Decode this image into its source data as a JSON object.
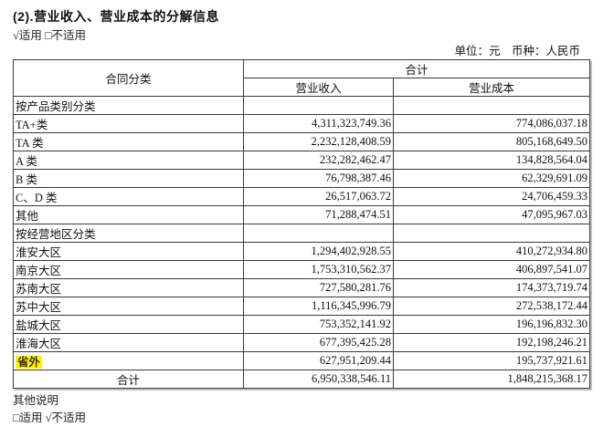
{
  "title": "(2).营业收入、营业成本的分解信息",
  "applicability_top": "√适用 □不适用",
  "unit_line": "单位：元　币种：人民币",
  "table": {
    "header": {
      "contract_category": "合同分类",
      "total_group": "合计",
      "revenue": "营业收入",
      "cost": "营业成本"
    },
    "rows": [
      {
        "type": "section",
        "label": "按产品类别分类",
        "revenue": "",
        "cost": ""
      },
      {
        "type": "data",
        "label": "TA+类",
        "revenue": "4,311,323,749.36",
        "cost": "774,086,037.18"
      },
      {
        "type": "data",
        "label": "TA 类",
        "revenue": "2,232,128,408.59",
        "cost": "805,168,649.50"
      },
      {
        "type": "data",
        "label": "A 类",
        "revenue": "232,282,462.47",
        "cost": "134,828,564.04"
      },
      {
        "type": "data",
        "label": "B 类",
        "revenue": "76,798,387.46",
        "cost": "62,329,691.09"
      },
      {
        "type": "data",
        "label": "C、D 类",
        "revenue": "26,517,063.72",
        "cost": "24,706,459.33"
      },
      {
        "type": "data",
        "label": "其他",
        "revenue": "71,288,474.51",
        "cost": "47,095,967.03"
      },
      {
        "type": "section",
        "label": "按经营地区分类",
        "revenue": "",
        "cost": ""
      },
      {
        "type": "data",
        "label": "淮安大区",
        "revenue": "1,294,402,928.55",
        "cost": "410,272,934.80"
      },
      {
        "type": "data",
        "label": "南京大区",
        "revenue": "1,753,310,562.37",
        "cost": "406,897,541.07"
      },
      {
        "type": "data",
        "label": "苏南大区",
        "revenue": "727,580,281.76",
        "cost": "174,373,719.74"
      },
      {
        "type": "data",
        "label": "苏中大区",
        "revenue": "1,116,345,996.79",
        "cost": "272,538,172.44"
      },
      {
        "type": "data",
        "label": "盐城大区",
        "revenue": "753,352,141.92",
        "cost": "196,196,832.30"
      },
      {
        "type": "data",
        "label": "淮海大区",
        "revenue": "677,395,425.28",
        "cost": "192,198,246.21"
      },
      {
        "type": "data",
        "label": "省外",
        "revenue": "627,951,209.44",
        "cost": "195,737,921.61",
        "highlight": true
      },
      {
        "type": "total",
        "label": "合计",
        "revenue": "6,950,338,546.11",
        "cost": "1,848,215,368.17"
      }
    ]
  },
  "footer": {
    "other_note": "其他说明",
    "applicability_bottom": "□适用 √不适用"
  },
  "colors": {
    "highlight": "#fcf402",
    "border": "#3a3a3a",
    "text": "#111111"
  }
}
